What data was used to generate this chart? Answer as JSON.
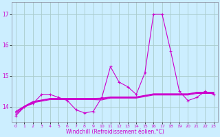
{
  "xlabel": "Windchill (Refroidissement éolien,°C)",
  "background_color": "#cceeff",
  "grid_color": "#aacccc",
  "line_color": "#cc00cc",
  "x_values": [
    0,
    1,
    2,
    3,
    4,
    5,
    6,
    7,
    8,
    9,
    10,
    11,
    12,
    13,
    14,
    15,
    16,
    17,
    18,
    19,
    20,
    21,
    22,
    23
  ],
  "volatile_series": [
    13.7,
    14.0,
    14.1,
    14.4,
    14.4,
    14.3,
    14.2,
    13.9,
    13.8,
    13.85,
    14.3,
    15.3,
    14.8,
    14.65,
    14.4,
    15.1,
    17.0,
    17.0,
    15.8,
    14.5,
    14.2,
    14.3,
    14.5,
    14.4
  ],
  "flat_series": [
    [
      13.8,
      14.0,
      14.15,
      14.2,
      14.25,
      14.25,
      14.25,
      14.25,
      14.25,
      14.25,
      14.25,
      14.3,
      14.3,
      14.3,
      14.3,
      14.35,
      14.4,
      14.4,
      14.4,
      14.4,
      14.4,
      14.45,
      14.45,
      14.45
    ],
    [
      13.85,
      14.02,
      14.17,
      14.22,
      14.27,
      14.27,
      14.27,
      14.27,
      14.27,
      14.27,
      14.28,
      14.32,
      14.32,
      14.32,
      14.32,
      14.37,
      14.42,
      14.42,
      14.42,
      14.42,
      14.42,
      14.47,
      14.47,
      14.47
    ],
    [
      13.75,
      13.98,
      14.13,
      14.18,
      14.23,
      14.23,
      14.23,
      14.23,
      14.23,
      14.23,
      14.22,
      14.28,
      14.28,
      14.28,
      14.28,
      14.33,
      14.38,
      14.38,
      14.38,
      14.38,
      14.38,
      14.43,
      14.43,
      14.43
    ],
    [
      13.82,
      14.01,
      14.16,
      14.21,
      14.26,
      14.26,
      14.26,
      14.26,
      14.26,
      14.26,
      14.26,
      14.31,
      14.31,
      14.31,
      14.31,
      14.36,
      14.41,
      14.41,
      14.41,
      14.41,
      14.41,
      14.46,
      14.46,
      14.46
    ]
  ],
  "ylim": [
    13.5,
    17.4
  ],
  "yticks": [
    14,
    15,
    16,
    17
  ],
  "xlim": [
    -0.5,
    23.5
  ],
  "figsize": [
    3.2,
    2.0
  ],
  "dpi": 100
}
